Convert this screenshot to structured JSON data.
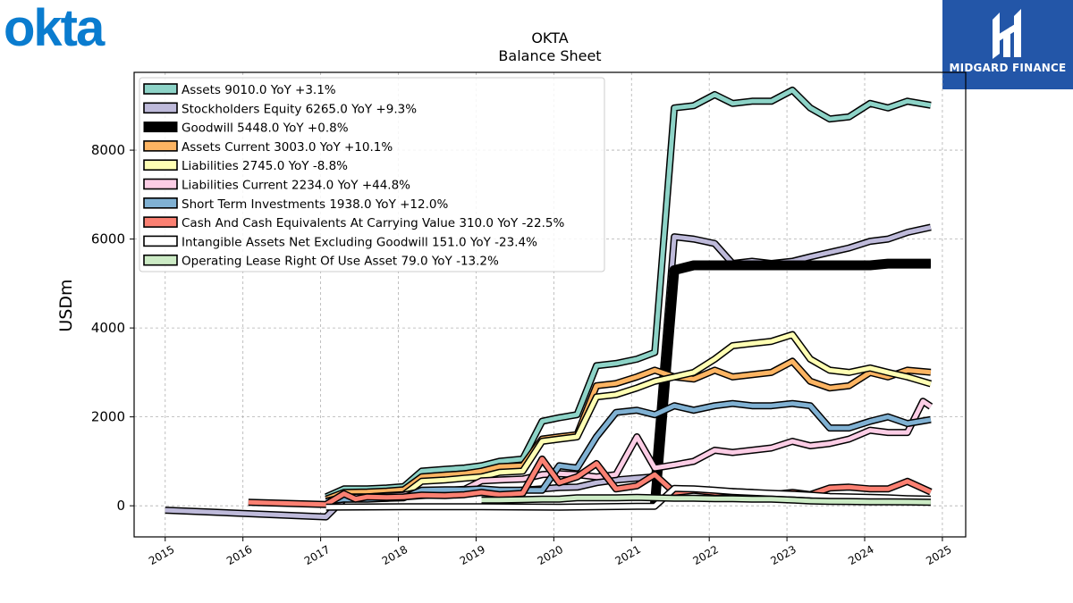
{
  "logos": {
    "left": "okta",
    "right": "MIDGARD FINANCE"
  },
  "chart_data": {
    "type": "line",
    "title": "OKTA",
    "subtitle": "Balance  Sheet",
    "ylabel": "USDm",
    "xlabel": "",
    "xlim": [
      2014.6,
      2025.3
    ],
    "ylim": [
      -700,
      9750
    ],
    "yticks": [
      0,
      2000,
      4000,
      6000,
      8000
    ],
    "xticks": [
      "2015",
      "2016",
      "2017",
      "2018",
      "2019",
      "2020",
      "2021",
      "2022",
      "2023",
      "2024",
      "2025"
    ],
    "grid": true,
    "legend_position": "top-left",
    "series": [
      {
        "name": "Assets  9010.0 YoY +3.1%",
        "color": "#8dd3c7",
        "width": 5,
        "x": [
          2017.07,
          2017.3,
          2017.6,
          2017.85,
          2018.07,
          2018.3,
          2018.6,
          2018.85,
          2019.07,
          2019.3,
          2019.6,
          2019.85,
          2020.07,
          2020.3,
          2020.55,
          2020.8,
          2021.07,
          2021.3,
          2021.55,
          2021.8,
          2022.07,
          2022.3,
          2022.55,
          2022.8,
          2023.07,
          2023.3,
          2023.55,
          2023.8,
          2024.07,
          2024.3,
          2024.55,
          2024.85
        ],
        "y": [
          200,
          380,
          380,
          400,
          430,
          780,
          820,
          850,
          900,
          1000,
          1050,
          1900,
          1980,
          2050,
          3150,
          3200,
          3300,
          3450,
          8950,
          9000,
          9250,
          9050,
          9100,
          9100,
          9350,
          8950,
          8700,
          8750,
          9050,
          8950,
          9100,
          9010
        ]
      },
      {
        "name": "Stockholders Equity  6265.0 YoY +9.3%",
        "color": "#bebada",
        "width": 5,
        "x": [
          2015.0,
          2017.07,
          2017.3,
          2017.6,
          2017.85,
          2018.07,
          2018.3,
          2018.6,
          2018.85,
          2019.07,
          2019.3,
          2019.6,
          2019.85,
          2020.07,
          2020.3,
          2020.55,
          2020.8,
          2021.07,
          2021.3,
          2021.55,
          2021.8,
          2022.07,
          2022.3,
          2022.55,
          2022.8,
          2023.07,
          2023.3,
          2023.55,
          2023.8,
          2024.07,
          2024.3,
          2024.55,
          2024.85
        ],
        "y": [
          -100,
          -250,
          150,
          160,
          170,
          200,
          230,
          260,
          280,
          300,
          320,
          350,
          380,
          410,
          420,
          520,
          580,
          620,
          650,
          6050,
          6000,
          5900,
          5450,
          5500,
          5450,
          5500,
          5600,
          5700,
          5800,
          5950,
          6000,
          6150,
          6265
        ]
      },
      {
        "name": "Goodwill  5448.0 YoY +0.8%",
        "color": "#000000",
        "width": 8,
        "x": [
          2021.3,
          2021.55,
          2021.8,
          2022.07,
          2022.3,
          2022.55,
          2022.8,
          2023.07,
          2023.3,
          2023.55,
          2023.8,
          2024.07,
          2024.3,
          2024.55,
          2024.85
        ],
        "y": [
          0,
          5300,
          5410,
          5410,
          5410,
          5410,
          5410,
          5410,
          5410,
          5410,
          5410,
          5410,
          5448,
          5448,
          5448
        ]
      },
      {
        "name": "Assets Current  3003.0 YoY +10.1%",
        "color": "#fdb462",
        "width": 5,
        "x": [
          2017.07,
          2017.3,
          2017.6,
          2017.85,
          2018.07,
          2018.3,
          2018.6,
          2018.85,
          2019.07,
          2019.3,
          2019.6,
          2019.85,
          2020.07,
          2020.3,
          2020.55,
          2020.8,
          2021.07,
          2021.3,
          2021.55,
          2021.8,
          2022.07,
          2022.3,
          2022.55,
          2022.8,
          2023.07,
          2023.3,
          2023.55,
          2023.8,
          2024.07,
          2024.3,
          2024.55,
          2024.85
        ],
        "y": [
          150,
          300,
          310,
          330,
          360,
          650,
          690,
          720,
          780,
          880,
          900,
          1500,
          1550,
          1600,
          2700,
          2750,
          2900,
          3050,
          2900,
          2850,
          3050,
          2900,
          2950,
          3000,
          3250,
          2800,
          2650,
          2700,
          3000,
          2900,
          3050,
          3003
        ]
      },
      {
        "name": "Liabilities  2745.0 YoY -8.8%",
        "color": "#ffffb3",
        "width": 5,
        "x": [
          2017.07,
          2017.3,
          2017.6,
          2017.85,
          2018.07,
          2018.3,
          2018.6,
          2018.85,
          2019.07,
          2019.3,
          2019.6,
          2019.85,
          2020.07,
          2020.3,
          2020.55,
          2020.8,
          2021.07,
          2021.3,
          2021.55,
          2021.8,
          2022.07,
          2022.3,
          2022.55,
          2022.8,
          2023.07,
          2023.3,
          2023.55,
          2023.8,
          2024.07,
          2024.3,
          2024.55,
          2024.85
        ],
        "y": [
          100,
          200,
          200,
          230,
          250,
          550,
          580,
          620,
          650,
          750,
          780,
          1450,
          1500,
          1550,
          2450,
          2500,
          2650,
          2800,
          2900,
          3000,
          3300,
          3600,
          3650,
          3700,
          3850,
          3300,
          3050,
          3000,
          3100,
          3000,
          2900,
          2745
        ]
      },
      {
        "name": "Liabilities Current  2234.0 YoY +44.8%",
        "color": "#fccde5",
        "width": 5,
        "x": [
          2017.07,
          2017.3,
          2017.6,
          2017.85,
          2018.07,
          2018.3,
          2018.6,
          2018.85,
          2019.07,
          2019.3,
          2019.6,
          2019.85,
          2020.07,
          2020.3,
          2020.55,
          2020.8,
          2021.07,
          2021.3,
          2021.55,
          2021.8,
          2022.07,
          2022.3,
          2022.55,
          2022.8,
          2023.07,
          2023.3,
          2023.55,
          2023.8,
          2024.07,
          2024.3,
          2024.55,
          2024.75,
          2024.85
        ],
        "y": [
          100,
          190,
          200,
          220,
          240,
          320,
          340,
          370,
          560,
          580,
          600,
          700,
          720,
          700,
          650,
          700,
          1550,
          850,
          920,
          1000,
          1250,
          1200,
          1250,
          1300,
          1450,
          1350,
          1400,
          1500,
          1700,
          1650,
          1650,
          2350,
          2234
        ]
      },
      {
        "name": "Short Term Investments  1938.0 YoY +12.0%",
        "color": "#80b1d3",
        "width": 5,
        "x": [
          2017.07,
          2017.3,
          2017.6,
          2017.85,
          2018.07,
          2018.3,
          2018.6,
          2018.85,
          2019.07,
          2019.3,
          2019.6,
          2019.85,
          2020.07,
          2020.3,
          2020.55,
          2020.8,
          2021.07,
          2021.3,
          2021.55,
          2021.8,
          2022.07,
          2022.3,
          2022.55,
          2022.8,
          2023.07,
          2023.3,
          2023.55,
          2023.8,
          2024.07,
          2024.3,
          2024.55,
          2024.85
        ],
        "y": [
          100,
          150,
          150,
          170,
          180,
          350,
          360,
          360,
          380,
          350,
          350,
          350,
          900,
          850,
          1550,
          2100,
          2150,
          2050,
          2250,
          2150,
          2250,
          2300,
          2250,
          2250,
          2300,
          2250,
          1750,
          1750,
          1900,
          2000,
          1850,
          1938
        ]
      },
      {
        "name": "Cash And Cash Equivalents At Carrying Value  310.0 YoY -22.5%",
        "color": "#fb8072",
        "width": 5,
        "x": [
          2016.07,
          2017.07,
          2017.3,
          2017.45,
          2017.6,
          2017.85,
          2018.07,
          2018.3,
          2018.6,
          2018.85,
          2019.07,
          2019.3,
          2019.6,
          2019.85,
          2020.07,
          2020.3,
          2020.55,
          2020.8,
          2021.07,
          2021.3,
          2021.55,
          2021.8,
          2022.07,
          2022.3,
          2022.55,
          2022.8,
          2023.07,
          2023.3,
          2023.55,
          2023.8,
          2024.07,
          2024.3,
          2024.55,
          2024.85
        ],
        "y": [
          80,
          30,
          270,
          150,
          200,
          190,
          200,
          240,
          230,
          250,
          300,
          250,
          280,
          1050,
          520,
          650,
          950,
          380,
          450,
          700,
          300,
          350,
          300,
          320,
          300,
          250,
          300,
          250,
          400,
          420,
          380,
          380,
          550,
          310
        ]
      },
      {
        "name": "Intangible Assets Net Excluding Goodwill  151.0 YoY -23.4%",
        "color": "#ffffff",
        "width": 5,
        "x": [
          2017.07,
          2018.07,
          2019.07,
          2020.07,
          2021.07,
          2021.3,
          2021.55,
          2021.8,
          2022.07,
          2022.3,
          2022.55,
          2022.8,
          2023.07,
          2023.3,
          2023.55,
          2023.8,
          2024.07,
          2024.3,
          2024.55,
          2024.85
        ],
        "y": [
          -30,
          -20,
          -20,
          -30,
          -10,
          -10,
          390,
          380,
          350,
          320,
          300,
          280,
          260,
          240,
          210,
          200,
          190,
          180,
          160,
          151
        ]
      },
      {
        "name": "Operating Lease Right Of Use Asset  79.0 YoY -13.2%",
        "color": "#ccebc5",
        "width": 5,
        "x": [
          2019.07,
          2019.3,
          2019.6,
          2019.85,
          2020.07,
          2020.3,
          2020.55,
          2020.8,
          2021.07,
          2021.3,
          2021.55,
          2021.8,
          2022.07,
          2022.3,
          2022.55,
          2022.8,
          2023.07,
          2023.3,
          2023.55,
          2023.8,
          2024.07,
          2024.3,
          2024.55,
          2024.85
        ],
        "y": [
          130,
          130,
          140,
          150,
          150,
          180,
          180,
          180,
          190,
          180,
          170,
          170,
          160,
          160,
          150,
          150,
          130,
          110,
          100,
          95,
          90,
          90,
          85,
          79
        ]
      }
    ]
  }
}
